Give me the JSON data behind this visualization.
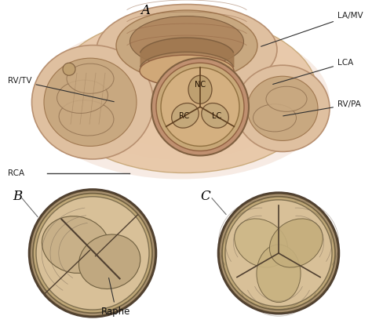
{
  "bg_white": "#ffffff",
  "bg_gray": "#9aa4a0",
  "skin_lightest": "#f0d8c0",
  "skin_light": "#e8c8a8",
  "skin_mid": "#d4aa80",
  "skin_dark": "#b08858",
  "skin_darker": "#8a6838",
  "skin_brown": "#704820",
  "valve_fill": "#c8a878",
  "valve_ring": "#8a6030",
  "cusp_fill": "#c0a070",
  "cusp_edge": "#705030",
  "line_color": "#404040",
  "label_color": "#202020",
  "panel_A_label": "A",
  "panel_B_label": "B",
  "panel_C_label": "C",
  "raphe_label": "Raphe",
  "RC_label": "RC",
  "LC_label": "LC",
  "NC_label": "NC",
  "LAMV_label": "LA/MV",
  "LCA_label": "LCA",
  "RVTV_label": "RV/TV",
  "RCA_label": "RCA",
  "RVPA_label": "RV/PA",
  "title_fontsize": 10,
  "label_fontsize": 7.5,
  "inner_label_fontsize": 7,
  "bottom_bg": "#9aA4a0"
}
